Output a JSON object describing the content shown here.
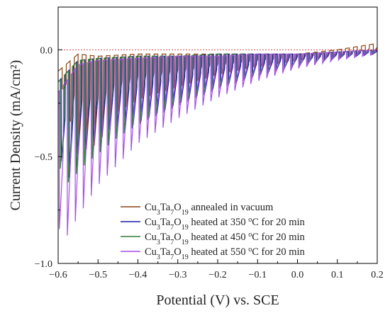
{
  "chart_data": {
    "type": "line",
    "xlabel": "Potential (V) vs. SCE",
    "ylabel": "Current Density (mA/cm²)",
    "xlim": [
      -0.6,
      0.2
    ],
    "ylim": [
      -1.0,
      0.2
    ],
    "x_ticks": [
      -0.6,
      -0.5,
      -0.4,
      -0.3,
      -0.2,
      -0.1,
      0.0,
      0.1,
      0.2
    ],
    "x_tick_labels": [
      "−0.6",
      "−0.5",
      "−0.4",
      "−0.3",
      "−0.2",
      "−0.1",
      "0.0",
      "0.1",
      "0.2"
    ],
    "y_ticks": [
      -1.0,
      -0.5,
      0.0
    ],
    "y_tick_labels": [
      "−1.0",
      "−0.5",
      "0.0"
    ],
    "zero_reference_line": true,
    "grid": false,
    "legend_position": "bottom-right",
    "chopped_light": true,
    "series": [
      {
        "name": "Cu3Ta7O19 annealed in vacuum",
        "legend_parts": [
          [
            "Cu",
            "n"
          ],
          [
            "3",
            "sub"
          ],
          [
            "Ta",
            "n"
          ],
          [
            "7",
            "sub"
          ],
          [
            "O",
            "n"
          ],
          [
            "19",
            "sub"
          ],
          [
            " annealed in vacuum",
            "n"
          ]
        ],
        "color": "#8B4513",
        "envelope_x": [
          -0.6,
          -0.55,
          -0.5,
          -0.4,
          -0.3,
          -0.2,
          -0.1,
          0.0,
          0.1,
          0.2
        ],
        "envelope_y": [
          -0.1,
          -0.02,
          -0.03,
          -0.02,
          -0.02,
          -0.02,
          -0.02,
          -0.02,
          0.0,
          0.03
        ],
        "light_x": [
          -0.6,
          -0.55,
          -0.5,
          -0.45,
          -0.4,
          -0.3,
          -0.2,
          -0.1,
          0.0,
          0.1,
          0.2
        ],
        "light_y": [
          -0.1,
          -0.5,
          -0.45,
          -0.3,
          -0.24,
          -0.18,
          -0.12,
          -0.08,
          -0.05,
          -0.03,
          -0.01
        ]
      },
      {
        "name": "Cu3Ta7O19 heated at 350 °C for 20 min",
        "legend_parts": [
          [
            "Cu",
            "n"
          ],
          [
            "3",
            "sub"
          ],
          [
            "Ta",
            "n"
          ],
          [
            "7",
            "sub"
          ],
          [
            "O",
            "n"
          ],
          [
            "19",
            "sub"
          ],
          [
            " heated at 350 ",
            "n"
          ],
          [
            "o",
            "sup"
          ],
          [
            "C for 20 min",
            "n"
          ]
        ],
        "color": "#1a1aa6",
        "envelope_x": [
          -0.6,
          -0.55,
          -0.5,
          -0.4,
          -0.3,
          -0.2,
          -0.1,
          0.0,
          0.1,
          0.2
        ],
        "envelope_y": [
          -0.15,
          -0.05,
          -0.04,
          -0.03,
          -0.03,
          -0.02,
          -0.02,
          -0.02,
          -0.01,
          0.0
        ],
        "light_x": [
          -0.6,
          -0.57,
          -0.55,
          -0.5,
          -0.45,
          -0.4,
          -0.3,
          -0.2,
          -0.1,
          0.0,
          0.1,
          0.2
        ],
        "light_y": [
          -0.5,
          -0.62,
          -0.55,
          -0.47,
          -0.4,
          -0.35,
          -0.26,
          -0.18,
          -0.12,
          -0.07,
          -0.04,
          -0.02
        ]
      },
      {
        "name": "Cu3Ta7O19 heated at 450 °C for 20 min",
        "legend_parts": [
          [
            "Cu",
            "n"
          ],
          [
            "3",
            "sub"
          ],
          [
            "Ta",
            "n"
          ],
          [
            "7",
            "sub"
          ],
          [
            "O",
            "n"
          ],
          [
            "19",
            "sub"
          ],
          [
            " heated at 450 ",
            "n"
          ],
          [
            "o",
            "sup"
          ],
          [
            "C for 20 min",
            "n"
          ]
        ],
        "color": "#2e7d32",
        "envelope_x": [
          -0.6,
          -0.55,
          -0.5,
          -0.4,
          -0.3,
          -0.2,
          -0.1,
          0.0,
          0.1,
          0.2
        ],
        "envelope_y": [
          -0.15,
          -0.05,
          -0.04,
          -0.03,
          -0.03,
          -0.02,
          -0.02,
          -0.02,
          -0.01,
          0.0
        ],
        "light_x": [
          -0.6,
          -0.57,
          -0.55,
          -0.5,
          -0.45,
          -0.4,
          -0.3,
          -0.2,
          -0.1,
          0.0,
          0.1,
          0.2
        ],
        "light_y": [
          -0.55,
          -0.65,
          -0.58,
          -0.5,
          -0.42,
          -0.36,
          -0.27,
          -0.19,
          -0.13,
          -0.08,
          -0.04,
          -0.02
        ]
      },
      {
        "name": "Cu3Ta7O19 heated at 550 °C for 20 min",
        "legend_parts": [
          [
            "Cu",
            "n"
          ],
          [
            "3",
            "sub"
          ],
          [
            "Ta",
            "n"
          ],
          [
            "7",
            "sub"
          ],
          [
            "O",
            "n"
          ],
          [
            "19",
            "sub"
          ],
          [
            " heated at 550 ",
            "n"
          ],
          [
            "o",
            "sup"
          ],
          [
            "C for 20 min",
            "n"
          ]
        ],
        "color": "#a64ce8",
        "envelope_x": [
          -0.6,
          -0.55,
          -0.5,
          -0.4,
          -0.3,
          -0.2,
          -0.1,
          0.0,
          0.1,
          0.2
        ],
        "envelope_y": [
          -0.2,
          -0.07,
          -0.05,
          -0.04,
          -0.03,
          -0.03,
          -0.02,
          -0.02,
          -0.01,
          0.0
        ],
        "light_x": [
          -0.6,
          -0.58,
          -0.55,
          -0.5,
          -0.45,
          -0.4,
          -0.3,
          -0.2,
          -0.1,
          0.0,
          0.1,
          0.2
        ],
        "light_y": [
          -0.85,
          -0.9,
          -0.8,
          -0.65,
          -0.55,
          -0.45,
          -0.33,
          -0.23,
          -0.15,
          -0.09,
          -0.05,
          -0.02
        ]
      }
    ]
  }
}
